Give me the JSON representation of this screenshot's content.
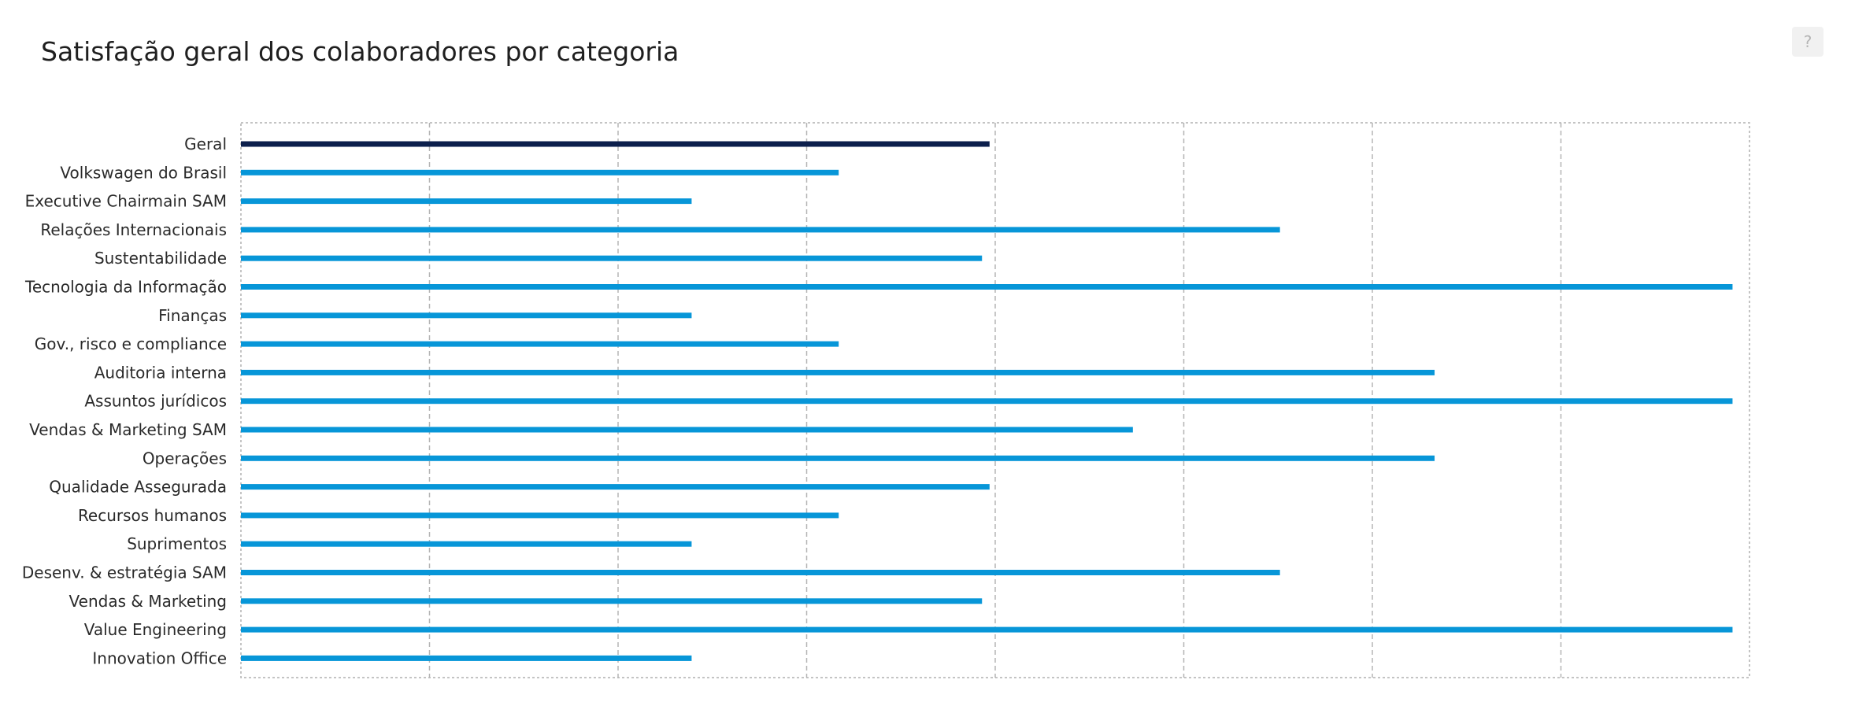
{
  "header": {
    "help_label": "?"
  },
  "chart_data": {
    "type": "bar",
    "orientation": "horizontal",
    "title": "Satisfação geral dos colaboradores por categoria",
    "xlabel": "",
    "ylabel": "",
    "xlim": [
      0,
      8
    ],
    "grid": true,
    "legend": "none",
    "categories": [
      "Geral",
      "Volkswagen do Brasil",
      "Executive Chairmain SAM",
      "Relações Internacionais",
      "Sustentabilidade",
      "Tecnologia da Informação",
      "Finanças",
      "Gov., risco e compliance",
      "Auditoria interna",
      "Assuntos jurídicos",
      "Vendas & Marketing SAM",
      "Operações",
      "Qualidade Assegurada",
      "Recursos humanos",
      "Suprimentos",
      "Desenv. & estratégia SAM",
      "Vendas & Marketing",
      "Value Engineering",
      "Innovation Office"
    ],
    "values": [
      3.97,
      3.17,
      2.39,
      5.51,
      3.93,
      7.91,
      2.39,
      3.17,
      6.33,
      7.91,
      4.73,
      6.33,
      3.97,
      3.17,
      2.39,
      5.51,
      3.93,
      7.91,
      2.39
    ],
    "colors": {
      "highlight": "#0c1f4c",
      "bar": "#0796d8",
      "grid": "#b5b5b5",
      "frame": "#b0b0b0"
    },
    "highlight_index": 0
  }
}
